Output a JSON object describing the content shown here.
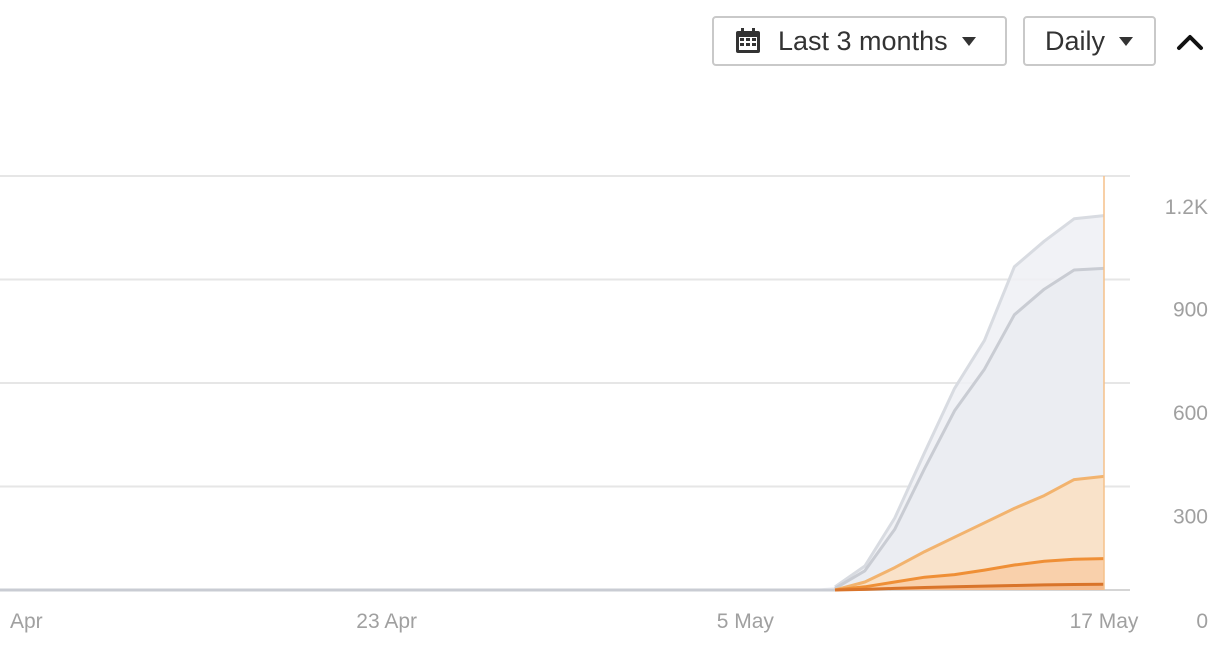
{
  "toolbar": {
    "date_range_label": "Last 3 months",
    "interval_label": "Daily",
    "calendar_icon": "calendar-icon",
    "collapse_icon": "chevron-up-icon"
  },
  "chart_data": {
    "type": "area",
    "grid": true,
    "y_axis_position": "right",
    "ylim": [
      0,
      1200
    ],
    "y_ticks": [
      {
        "value": 0,
        "label": "0"
      },
      {
        "value": 300,
        "label": "300"
      },
      {
        "value": 600,
        "label": "600"
      },
      {
        "value": 900,
        "label": "900"
      },
      {
        "value": 1200,
        "label": "1.2K"
      }
    ],
    "x_ticks": [
      {
        "date": "2025-04-11",
        "label": "Apr"
      },
      {
        "date": "2025-04-23",
        "label": "23 Apr"
      },
      {
        "date": "2025-05-05",
        "label": "5 May"
      },
      {
        "date": "2025-05-17",
        "label": "17 May"
      }
    ],
    "x": [
      "2025-05-08",
      "2025-05-09",
      "2025-05-10",
      "2025-05-11",
      "2025-05-12",
      "2025-05-13",
      "2025-05-14",
      "2025-05-15",
      "2025-05-16",
      "2025-05-17"
    ],
    "series": [
      {
        "color": "#d8dbe1",
        "fill": "#eef0f4",
        "values": [
          10,
          75,
          225,
          430,
          630,
          780,
          1010,
          1090,
          1160,
          1170
        ]
      },
      {
        "color": "#c9ccd3",
        "fill": "#eaecf1",
        "values": [
          5,
          60,
          190,
          380,
          560,
          690,
          860,
          940,
          1000,
          1005
        ]
      },
      {
        "color": "#f2b36e",
        "fill": "#fcdfc2",
        "values": [
          0,
          25,
          70,
          120,
          165,
          210,
          255,
          295,
          345,
          355
        ]
      },
      {
        "color": "#ef8f36",
        "fill": "#f9cca6",
        "values": [
          0,
          10,
          25,
          40,
          48,
          62,
          78,
          90,
          96,
          98
        ]
      },
      {
        "color": "#d9742a",
        "fill": "#f4b98a",
        "values": [
          0,
          2,
          5,
          8,
          10,
          12,
          14,
          16,
          17,
          18
        ]
      }
    ],
    "cursor_date": "2025-05-17",
    "cursor_color": "#f5c18a"
  }
}
